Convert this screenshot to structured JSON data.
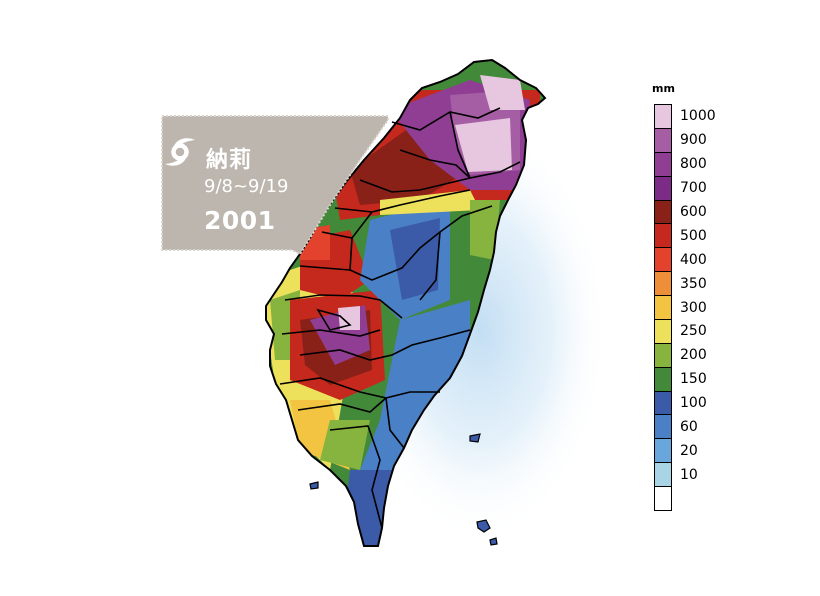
{
  "card": {
    "name": "納莉",
    "dates": "9/8~9/19",
    "year": "2001",
    "bg_color": "#bcb6ae",
    "icon": "typhoon-icon"
  },
  "legend": {
    "unit": "mm",
    "levels": [
      {
        "label": "1000",
        "color": "#e7c6e0"
      },
      {
        "label": "900",
        "color": "#a55ea4"
      },
      {
        "label": "800",
        "color": "#8f3e93"
      },
      {
        "label": "700",
        "color": "#7c2b86"
      },
      {
        "label": "600",
        "color": "#8a2118"
      },
      {
        "label": "500",
        "color": "#c5281d"
      },
      {
        "label": "400",
        "color": "#e3422c"
      },
      {
        "label": "350",
        "color": "#ed8f38"
      },
      {
        "label": "300",
        "color": "#f2c441"
      },
      {
        "label": "250",
        "color": "#ede05a"
      },
      {
        "label": "200",
        "color": "#86b43e"
      },
      {
        "label": "150",
        "color": "#43893a"
      },
      {
        "label": "100",
        "color": "#3b5ba8"
      },
      {
        "label": "60",
        "color": "#4a80c6"
      },
      {
        "label": "20",
        "color": "#69a6dc"
      },
      {
        "label": "10",
        "color": "#a8d4e6"
      },
      {
        "label": "",
        "color": "#ffffff"
      }
    ]
  }
}
